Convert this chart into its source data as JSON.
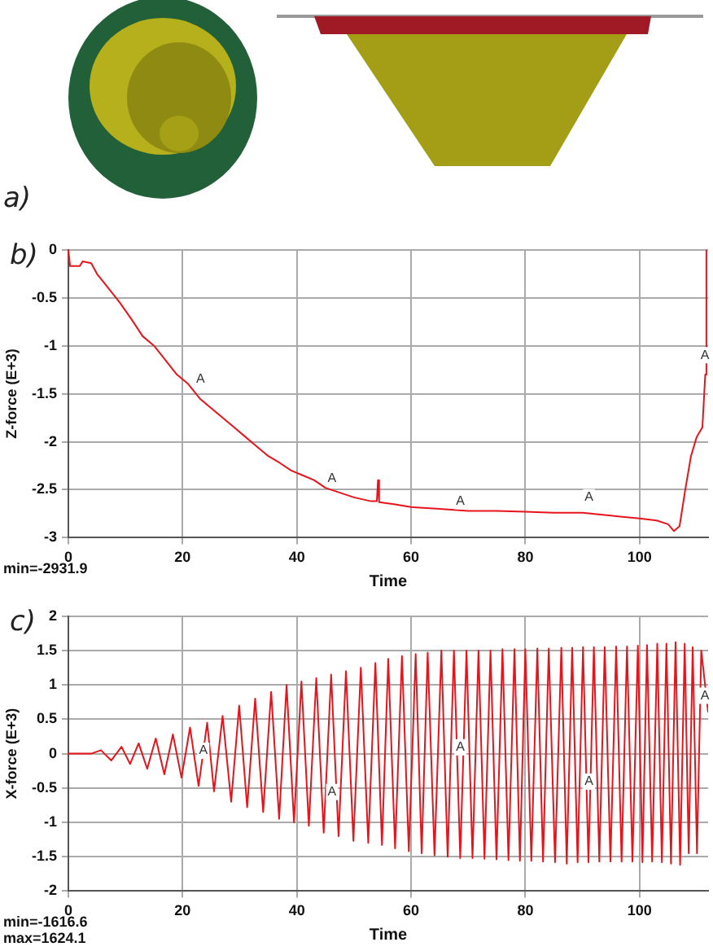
{
  "chart_data": [
    {
      "type": "other",
      "title": "a)"
    },
    {
      "type": "line",
      "title": "b)",
      "xlabel": "Time",
      "ylabel": "Z-force (E+3)",
      "xlim": [
        0,
        112
      ],
      "xticks": [
        0,
        20,
        40,
        60,
        80,
        100
      ],
      "ylim": [
        -3,
        0
      ],
      "yticks": [
        -3,
        -2.5,
        -2,
        -1.5,
        -1,
        -0.5,
        0
      ],
      "grid": true,
      "legend": false,
      "marker": "none",
      "line_style": "solid",
      "series": [
        {
          "color": "#e8141c",
          "x": [
            0,
            0.3,
            2,
            2.5,
            4,
            5,
            7,
            9,
            11,
            13,
            15,
            17,
            19,
            21,
            23,
            25,
            27,
            29,
            31,
            33,
            35,
            37,
            39,
            41,
            43,
            45,
            47,
            50,
            53,
            54,
            54.2,
            54.4,
            57,
            60,
            65,
            70,
            75,
            80,
            85,
            90,
            95,
            100,
            103,
            105,
            106,
            107,
            108,
            109,
            110,
            111,
            111.5,
            111.7
          ],
          "values": [
            0,
            -0.17,
            -0.17,
            -0.12,
            -0.14,
            -0.25,
            -0.4,
            -0.55,
            -0.72,
            -0.9,
            -1.0,
            -1.15,
            -1.3,
            -1.4,
            -1.55,
            -1.65,
            -1.75,
            -1.85,
            -1.95,
            -2.05,
            -2.15,
            -2.22,
            -2.3,
            -2.35,
            -2.4,
            -2.48,
            -2.52,
            -2.58,
            -2.62,
            -2.62,
            -2.4,
            -2.63,
            -2.65,
            -2.68,
            -2.7,
            -2.72,
            -2.72,
            -2.73,
            -2.74,
            -2.74,
            -2.77,
            -2.8,
            -2.82,
            -2.86,
            -2.93,
            -2.88,
            -2.5,
            -2.15,
            -1.95,
            -1.85,
            -1.3,
            0
          ]
        }
      ],
      "annotations": [
        "min=-2931.9",
        {
          "text": "A",
          "x": 22,
          "y": -1.45
        },
        {
          "text": "A",
          "x": 45,
          "y": -2.48
        },
        {
          "text": "A",
          "x": 67.5,
          "y": -2.72
        },
        {
          "text": "A",
          "x": 90,
          "y": -2.68
        },
        {
          "text": "A",
          "x": 112,
          "y": -1.2
        }
      ]
    },
    {
      "type": "line",
      "title": "c)",
      "xlabel": "Time",
      "ylabel": "X-force (E+3)",
      "xlim": [
        0,
        112
      ],
      "xticks": [
        0,
        20,
        40,
        60,
        80,
        100
      ],
      "ylim": [
        -2,
        2
      ],
      "yticks": [
        -2,
        -1.5,
        -1,
        -0.5,
        0,
        0.5,
        1,
        1.5,
        2
      ],
      "grid": true,
      "legend": false,
      "marker": "none",
      "line_style": "solid",
      "series": [
        {
          "color": "#e8141c",
          "x": [
            0,
            4,
            5.7,
            7.5,
            9.3,
            10.8,
            12.3,
            13.8,
            15.3,
            16.8,
            18.3,
            19.8,
            21.3,
            22.8,
            24.3,
            25.5,
            27,
            28.5,
            29.9,
            31.3,
            32.7,
            34.1,
            35.5,
            36.9,
            38.2,
            39.5,
            40.8,
            42.1,
            43.4,
            44.7,
            46,
            47.3,
            48.6,
            49.9,
            51.2,
            52.5,
            53.75,
            54.9,
            56,
            57.2,
            58.4,
            59.6,
            60.8,
            61.85,
            62.9,
            64.1,
            65.3,
            66.4,
            67.5,
            68.6,
            69.7,
            70.75,
            71.8,
            72.85,
            73.9,
            74.95,
            76,
            77.05,
            78.1,
            79.05,
            80,
            81.05,
            82.1,
            83.1,
            84.1,
            85.2,
            86.3,
            87.25,
            88.2,
            89.15,
            90.1,
            91.05,
            92,
            92.95,
            93.9,
            94.9,
            95.9,
            96.85,
            97.8,
            98.75,
            99.7,
            100.5,
            101.3,
            102.2,
            103.1,
            103.9,
            104.7,
            105.5,
            106.3,
            107.1,
            107.9,
            108.6,
            109.3,
            110.05,
            110.8,
            112
          ],
          "values": [
            0,
            0,
            0.05,
            -0.1,
            0.1,
            -0.15,
            0.15,
            -0.22,
            0.22,
            -0.3,
            0.28,
            -0.35,
            0.38,
            -0.47,
            0.45,
            -0.55,
            0.55,
            -0.7,
            0.7,
            -0.78,
            0.8,
            -0.85,
            0.9,
            -0.95,
            1.0,
            -1.0,
            1.05,
            -1.05,
            1.1,
            -1.15,
            1.15,
            -1.2,
            1.2,
            -1.27,
            1.25,
            -1.3,
            1.32,
            -1.33,
            1.38,
            -1.38,
            1.42,
            -1.42,
            1.45,
            -1.45,
            1.47,
            -1.48,
            1.5,
            -1.5,
            1.5,
            -1.52,
            1.5,
            -1.52,
            1.5,
            -1.53,
            1.5,
            -1.54,
            1.52,
            -1.55,
            1.52,
            -1.56,
            1.52,
            -1.56,
            1.53,
            -1.57,
            1.53,
            -1.58,
            1.54,
            -1.6,
            1.54,
            -1.58,
            1.55,
            -1.58,
            1.55,
            -1.57,
            1.55,
            -1.57,
            1.56,
            -1.57,
            1.56,
            -1.57,
            1.57,
            -1.58,
            1.58,
            -1.57,
            1.6,
            -1.58,
            1.6,
            -1.6,
            1.62,
            -1.62,
            1.6,
            -1.45,
            1.55,
            -1.45,
            1.5,
            0.6
          ]
        }
      ],
      "annotations": [
        "min=-1616.6",
        "max=1624.1",
        {
          "text": "A",
          "x": 22.5,
          "y": -0.1
        },
        {
          "text": "A",
          "x": 45,
          "y": -0.7
        },
        {
          "text": "A",
          "x": 67.5,
          "y": -0.05
        },
        {
          "text": "A",
          "x": 90,
          "y": -0.55
        },
        {
          "text": "A",
          "x": 112,
          "y": 0.7
        }
      ]
    }
  ]
}
